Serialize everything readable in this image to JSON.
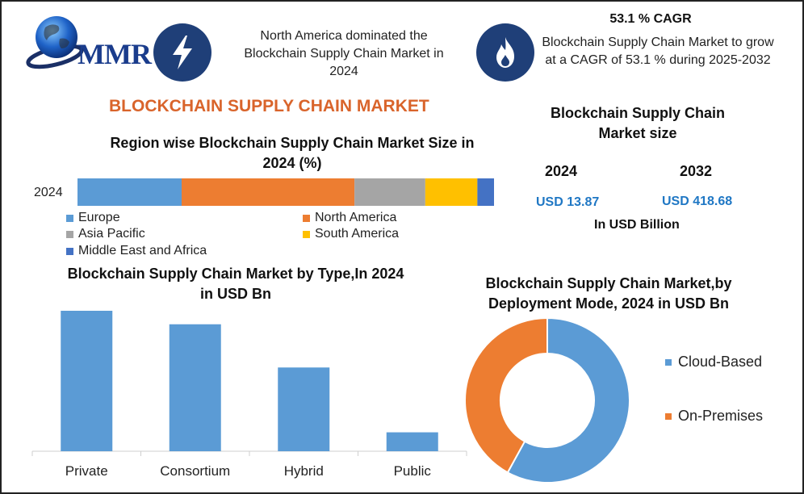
{
  "logo": {
    "text": "MMR"
  },
  "header": {
    "dominance_text": "North America dominated the Blockchain Supply Chain Market in 2024",
    "cagr_title": "53.1 % CAGR",
    "cagr_text": "Blockchain Supply Chain Market to grow at a CAGR of 53.1 % during 2025-2032"
  },
  "main_title": "BLOCKCHAIN SUPPLY CHAIN MARKET",
  "market_size": {
    "title": "Blockchain Supply Chain Market size",
    "year1": "2024",
    "year2": "2032",
    "value1": "USD 13.87",
    "value2": "USD 418.68",
    "unit": "In USD Billion"
  },
  "colors": {
    "title_orange": "#d9642b",
    "usd_blue": "#1f77c4",
    "badge_navy": "#1f3f78",
    "blue": "#5b9bd5",
    "orange": "#ed7d31",
    "gray": "#a5a5a5",
    "yellow": "#ffc000",
    "dark_blue": "#4472c4"
  },
  "chart_data": [
    {
      "type": "bar",
      "orientation": "horizontal-stacked",
      "title": "Region wise Blockchain Supply Chain Market Size in 2024 (%)",
      "categories": [
        "2024"
      ],
      "series": [
        {
          "name": "Europe",
          "values": [
            25
          ],
          "color": "#5b9bd5"
        },
        {
          "name": "North America",
          "values": [
            41.5
          ],
          "color": "#ed7d31"
        },
        {
          "name": "Asia Pacific",
          "values": [
            17
          ],
          "color": "#a5a5a5"
        },
        {
          "name": "South America",
          "values": [
            12.5
          ],
          "color": "#ffc000"
        },
        {
          "name": "Middle East and Africa",
          "values": [
            4
          ],
          "color": "#4472c4"
        }
      ],
      "xlim": [
        0,
        100
      ],
      "legend": "bottom"
    },
    {
      "type": "bar",
      "title": "Blockchain Supply Chain Market by Type,In 2024 in USD Bn",
      "categories": [
        "Private",
        "Consortium",
        "Hybrid",
        "Public"
      ],
      "values": [
        5.2,
        4.7,
        3.1,
        0.7
      ],
      "ylim": [
        0,
        5.2
      ],
      "color": "#5b9bd5",
      "grid": false
    },
    {
      "type": "pie",
      "style": "donut",
      "title": "Blockchain Supply Chain Market,by Deployment Mode, 2024 in USD Bn",
      "labels": [
        "Cloud-Based",
        "On-Premises"
      ],
      "values": [
        58,
        42
      ],
      "colors": [
        "#5b9bd5",
        "#ed7d31"
      ],
      "legend": "right"
    }
  ]
}
